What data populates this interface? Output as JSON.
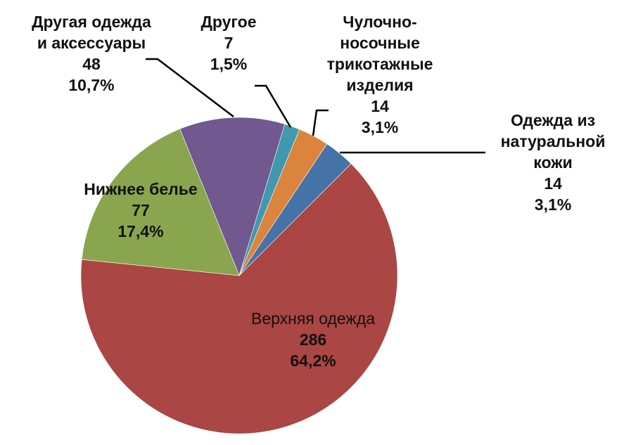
{
  "chart_data": {
    "type": "pie",
    "title": "",
    "start_angle_deg": -22,
    "direction": "clockwise",
    "slices": [
      {
        "key": "other_clothing",
        "label": "Другая одежда и аксессуары",
        "label_lines": [
          "Другая одежда",
          "и аксессуары"
        ],
        "value": 48,
        "percent": "10,7%",
        "color": "#71588f"
      },
      {
        "key": "other",
        "label": "Другое",
        "label_lines": [
          "Другое"
        ],
        "value": 7,
        "percent": "1,5%",
        "color": "#4198af"
      },
      {
        "key": "hosiery",
        "label": "Чулочно-носочные трикотажные изделия",
        "label_lines": [
          "Чулочно-",
          "носочные",
          "трикотажные",
          "изделия"
        ],
        "value": 14,
        "percent": "3,1%",
        "color": "#db843d"
      },
      {
        "key": "leather",
        "label": "Одежда из натуральной кожи",
        "label_lines": [
          "Одежда из",
          "натуральной",
          "кожи"
        ],
        "value": 14,
        "percent": "3,1%",
        "color": "#4572a7"
      },
      {
        "key": "outerwear",
        "label": "Верхняя одежда",
        "label_lines": [
          "Верхняя одежда"
        ],
        "value": 286,
        "percent": "64,2%",
        "color": "#aa4643"
      },
      {
        "key": "underwear",
        "label": "Нижнее белье",
        "label_lines": [
          "Нижнее белье"
        ],
        "value": 77,
        "percent": "17,4%",
        "color": "#89a54e"
      }
    ],
    "legend": "none",
    "data_labels": "category name, value, percentage"
  }
}
